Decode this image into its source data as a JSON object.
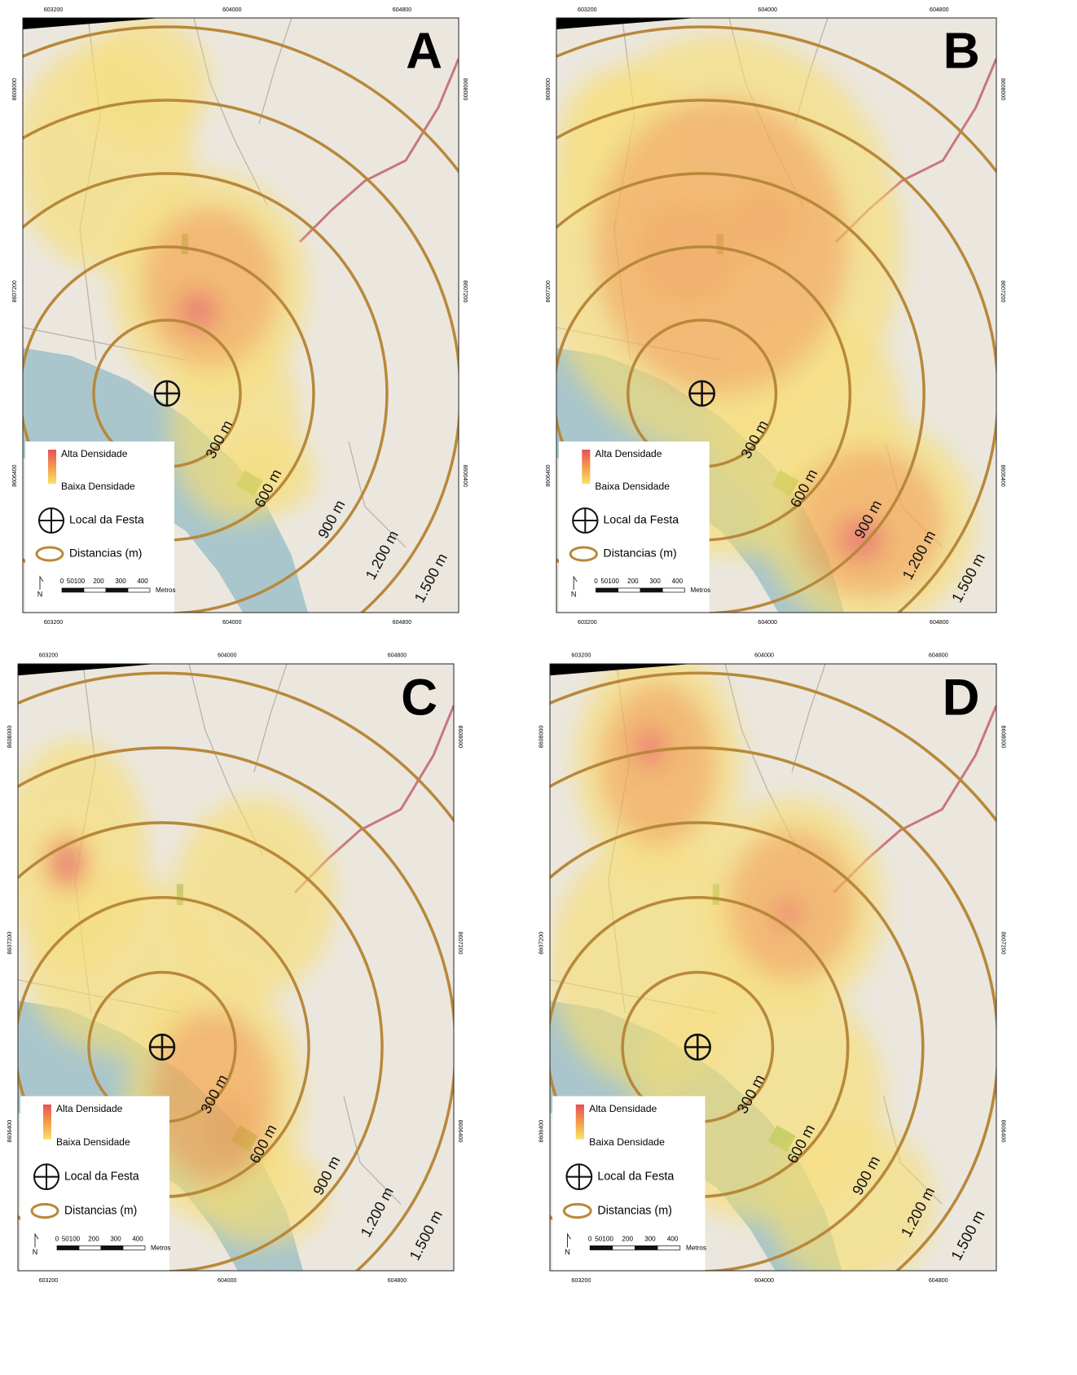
{
  "panels": [
    {
      "label": "A"
    },
    {
      "label": "B"
    },
    {
      "label": "C"
    },
    {
      "label": "D"
    }
  ],
  "legend": {
    "high": "Alta Densidade",
    "low": "Baixa Densidade",
    "site": "Local da Festa",
    "distances": "Distancias (m)",
    "north": "N",
    "scale_units": "Metros",
    "scale_ticks": [
      "0",
      "50100",
      "200",
      "300",
      "400"
    ]
  },
  "ring_labels": [
    "300 m",
    "600 m",
    "900 m",
    "1.200 m",
    "1.500 m"
  ],
  "x_ticks": [
    "603200",
    "604000",
    "604800"
  ],
  "y_ticks": [
    "8608000",
    "8607200",
    "8606400"
  ]
}
